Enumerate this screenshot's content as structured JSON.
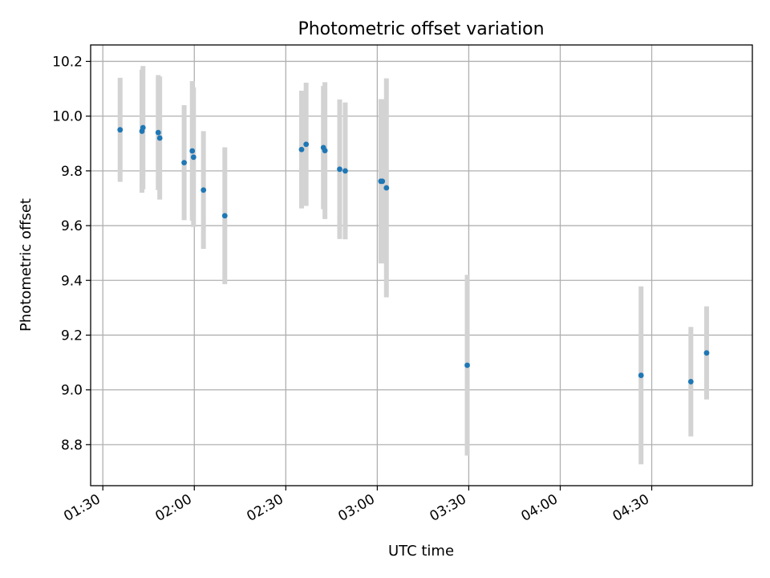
{
  "chart_data": {
    "type": "scatter",
    "title": "Photometric offset variation",
    "xlabel": "UTC time",
    "ylabel": "Photometric offset",
    "xlim": [
      "01:26",
      "05:03"
    ],
    "ylim": [
      8.65,
      10.26
    ],
    "xticks": [
      "01:30",
      "02:00",
      "02:30",
      "03:00",
      "03:30",
      "04:00",
      "04:30"
    ],
    "yticks": [
      8.8,
      9.0,
      9.2,
      9.4,
      9.6,
      9.8,
      10.0,
      10.2
    ],
    "grid": true,
    "colors": {
      "marker": "#1f77b4",
      "errorbar": "#d3d3d3"
    },
    "points": [
      {
        "x": "01:35:40",
        "y": 9.95,
        "yerr": 0.19
      },
      {
        "x": "01:42:50",
        "y": 9.945,
        "yerr": 0.225
      },
      {
        "x": "01:43:10",
        "y": 9.958,
        "yerr": 0.225
      },
      {
        "x": "01:48:10",
        "y": 9.94,
        "yerr": 0.21
      },
      {
        "x": "01:48:40",
        "y": 9.92,
        "yerr": 0.225
      },
      {
        "x": "01:56:40",
        "y": 9.83,
        "yerr": 0.21
      },
      {
        "x": "01:59:20",
        "y": 9.873,
        "yerr": 0.255
      },
      {
        "x": "01:59:45",
        "y": 9.85,
        "yerr": 0.255
      },
      {
        "x": "02:03:00",
        "y": 9.73,
        "yerr": 0.215
      },
      {
        "x": "02:10:00",
        "y": 9.636,
        "yerr": 0.25
      },
      {
        "x": "02:35:10",
        "y": 9.878,
        "yerr": 0.215
      },
      {
        "x": "02:36:40",
        "y": 9.897,
        "yerr": 0.225
      },
      {
        "x": "02:42:20",
        "y": 9.885,
        "yerr": 0.225
      },
      {
        "x": "02:42:50",
        "y": 9.874,
        "yerr": 0.25
      },
      {
        "x": "02:47:40",
        "y": 9.806,
        "yerr": 0.255
      },
      {
        "x": "02:49:30",
        "y": 9.8,
        "yerr": 0.25
      },
      {
        "x": "03:01:10",
        "y": 9.762,
        "yerr": 0.3
      },
      {
        "x": "03:01:40",
        "y": 9.762,
        "yerr": 0.3
      },
      {
        "x": "03:03:00",
        "y": 9.738,
        "yerr": 0.4
      },
      {
        "x": "03:29:30",
        "y": 9.09,
        "yerr": 0.33
      },
      {
        "x": "04:26:30",
        "y": 9.053,
        "yerr": 0.325
      },
      {
        "x": "04:42:50",
        "y": 9.03,
        "yerr": 0.2
      },
      {
        "x": "04:48:00",
        "y": 9.135,
        "yerr": 0.17
      }
    ]
  }
}
